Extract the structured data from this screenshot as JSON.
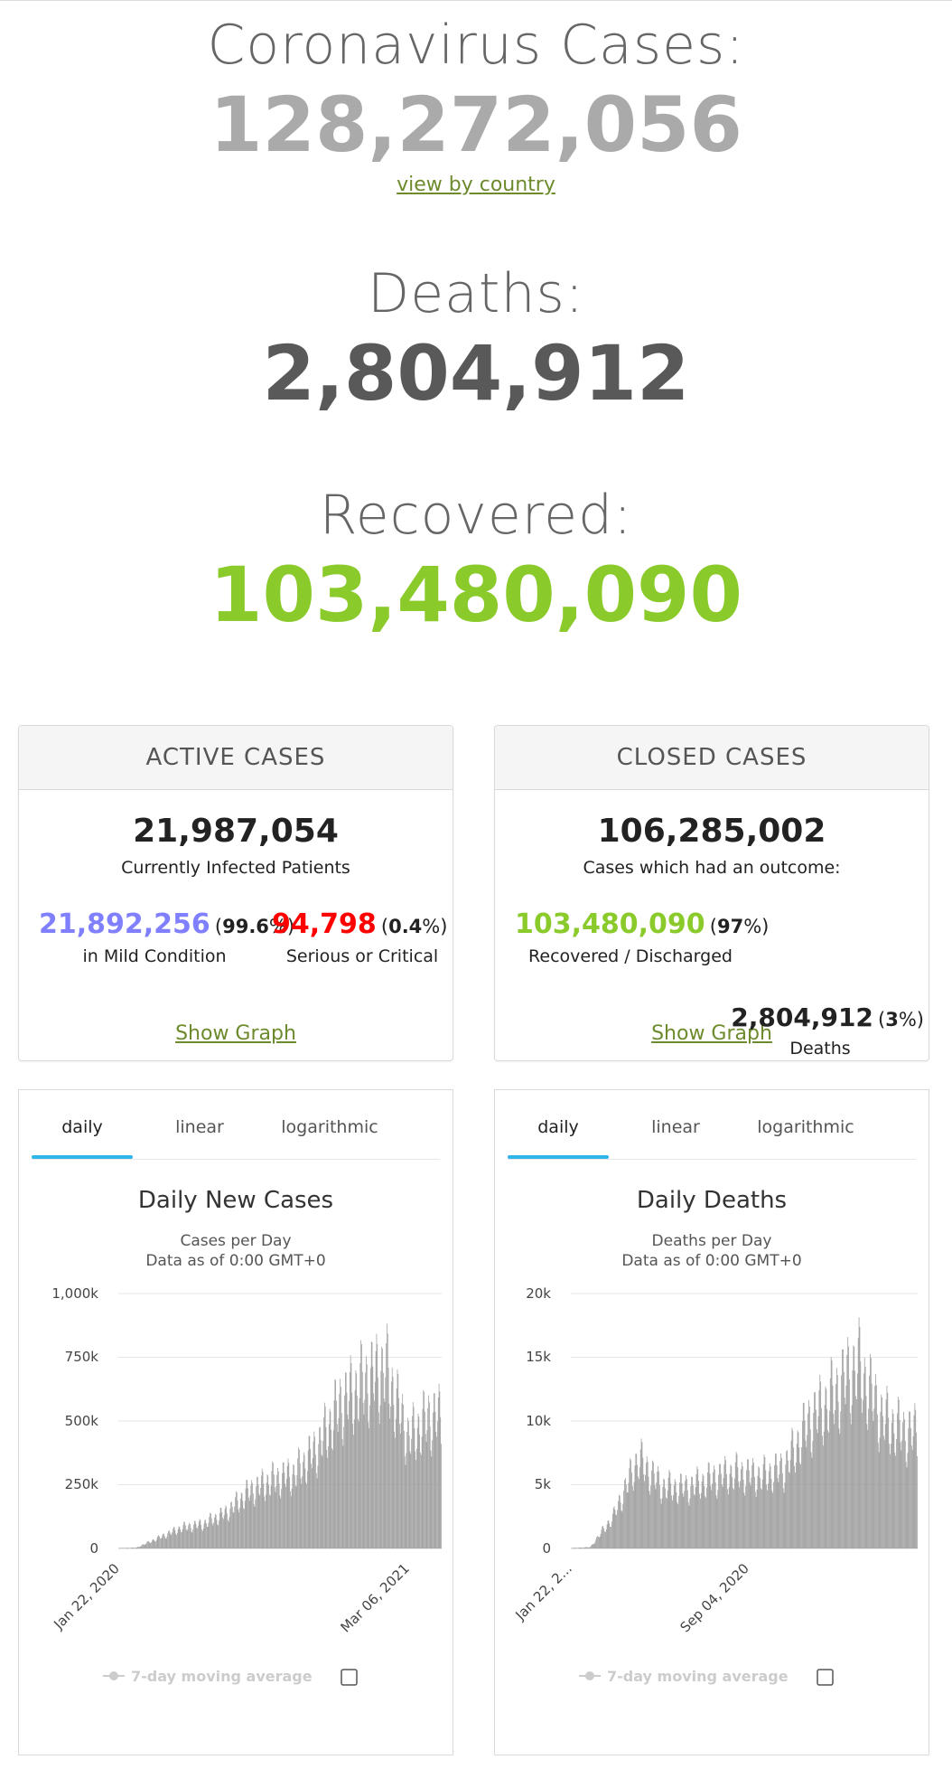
{
  "summary": {
    "cases_label": "Coronavirus Cases:",
    "cases_value": "128,272,056",
    "view_link": "view by country",
    "deaths_label": "Deaths:",
    "deaths_value": "2,804,912",
    "recovered_label": "Recovered:",
    "recovered_value": "103,480,090"
  },
  "active": {
    "header": "ACTIVE CASES",
    "total": "21,987,054",
    "total_label": "Currently Infected Patients",
    "mild_value": "21,892,256",
    "mild_pct": "99.6",
    "mild_label": "in Mild Condition",
    "serious_value": "94,798",
    "serious_pct": "0.4",
    "serious_label": "Serious or Critical",
    "show_graph": "Show Graph"
  },
  "closed": {
    "header": "CLOSED CASES",
    "total": "106,285,002",
    "total_label": "Cases which had an outcome:",
    "recovered_value": "103,480,090",
    "recovered_pct": "97",
    "recovered_label": "Recovered / Discharged",
    "deaths_value": "2,804,912",
    "deaths_pct": "3",
    "deaths_label": "Deaths",
    "show_graph": "Show Graph"
  },
  "colors": {
    "mild": "#8080FF",
    "serious": "#FF0000",
    "recovered": "#8ACA2B",
    "bar": "#999999",
    "tab_active": "#2fb5e8",
    "link": "#6d8a2c"
  },
  "chart_data": [
    {
      "type": "bar",
      "title": "Daily New Cases",
      "subtitle": "Cases per Day",
      "subtitle2": "Data as of 0:00 GMT+0",
      "tabs": [
        "daily",
        "linear",
        "logarithmic"
      ],
      "active_tab": "daily",
      "yticks": [
        "1,000k",
        "750k",
        "500k",
        "250k",
        "0"
      ],
      "ylim": [
        0,
        1000000
      ],
      "xticks": [
        "Jan 22, 2020",
        "Mar 06, 2021"
      ],
      "legend": "7-day moving average",
      "grid": true,
      "x_start": "Jan 22, 2020",
      "x_end": "Mar 31, 2021",
      "monthly_levels": [
        {
          "month": "Jan 2020",
          "value": 1000
        },
        {
          "month": "Feb 2020",
          "value": 3000
        },
        {
          "month": "Mar 2020",
          "value": 40000
        },
        {
          "month": "Apr 2020",
          "value": 80000
        },
        {
          "month": "May 2020",
          "value": 95000
        },
        {
          "month": "Jun 2020",
          "value": 140000
        },
        {
          "month": "Jul 2020",
          "value": 220000
        },
        {
          "month": "Aug 2020",
          "value": 265000
        },
        {
          "month": "Sep 2020",
          "value": 290000
        },
        {
          "month": "Oct 2020",
          "value": 390000
        },
        {
          "month": "Nov 2020",
          "value": 560000
        },
        {
          "month": "Dec 2020",
          "value": 640000
        },
        {
          "month": "Jan 2021",
          "value": 700000
        },
        {
          "month": "Feb 2021",
          "value": 430000
        },
        {
          "month": "Mar 2021",
          "value": 510000
        }
      ]
    },
    {
      "type": "bar",
      "title": "Daily Deaths",
      "subtitle": "Deaths per Day",
      "subtitle2": "Data as of 0:00 GMT+0",
      "tabs": [
        "daily",
        "linear",
        "logarithmic"
      ],
      "active_tab": "daily",
      "yticks": [
        "20k",
        "15k",
        "10k",
        "5k",
        "0"
      ],
      "ylim": [
        0,
        20000
      ],
      "xticks": [
        "Jan 22, 2...",
        "Sep 04, 2020"
      ],
      "legend": "7-day moving average",
      "grid": true,
      "x_start": "Jan 22, 2020",
      "x_end": "Mar 31, 2021",
      "monthly_levels": [
        {
          "month": "Jan 2020",
          "value": 10
        },
        {
          "month": "Feb 2020",
          "value": 100
        },
        {
          "month": "Mar 2020",
          "value": 2500
        },
        {
          "month": "Apr 2020",
          "value": 7000
        },
        {
          "month": "May 2020",
          "value": 4800
        },
        {
          "month": "Jun 2020",
          "value": 4700
        },
        {
          "month": "Jul 2020",
          "value": 5400
        },
        {
          "month": "Aug 2020",
          "value": 5900
        },
        {
          "month": "Sep 2020",
          "value": 5600
        },
        {
          "month": "Oct 2020",
          "value": 6200
        },
        {
          "month": "Nov 2020",
          "value": 9800
        },
        {
          "month": "Dec 2020",
          "value": 11800
        },
        {
          "month": "Jan 2021",
          "value": 14300
        },
        {
          "month": "Feb 2021",
          "value": 10200
        },
        {
          "month": "Mar 2021",
          "value": 9000
        }
      ]
    }
  ]
}
